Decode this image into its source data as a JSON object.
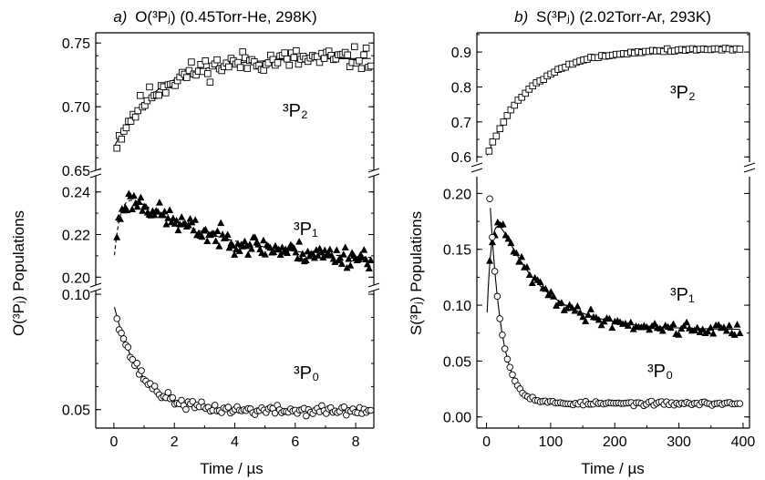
{
  "chart_data": [
    {
      "id": "a",
      "type": "scatter",
      "panel_letter": "a)",
      "title": "O(³Pⱼ) (0.45Torr-He, 298K)",
      "xlabel": "Time / µs",
      "ylabel": "O(³Pⱼ) Populations",
      "x_ticks": [
        "0",
        "2",
        "4",
        "6",
        "8"
      ],
      "xlim": [
        -0.6,
        8.6
      ],
      "subpanels": [
        {
          "series_name": "³P₂",
          "marker": "square",
          "ylim": [
            0.648,
            0.758
          ],
          "ticks": [
            0.65,
            0.7,
            0.75
          ],
          "tick_labels": [
            "0.65",
            "0.70",
            "0.75"
          ],
          "minor_step": 0.01,
          "fit": {
            "kind": "exp_rise",
            "y_inf": 0.738,
            "amp": 0.07,
            "tau": 1.4,
            "x0": 0
          },
          "data": {
            "kind": "fit_noise",
            "x_start": 0.1,
            "x_end": 8.5,
            "n": 110,
            "noise": 0.006,
            "seed": 11
          }
        },
        {
          "series_name": "³P₁",
          "marker": "triangle",
          "ylim": [
            0.195,
            0.248
          ],
          "ticks": [
            0.2,
            0.22,
            0.24
          ],
          "tick_labels": [
            "0.20",
            "0.22",
            "0.24"
          ],
          "minor_step": 0.01,
          "fit": {
            "kind": "rise_decay",
            "y_inf": 0.207,
            "amp": 0.038,
            "tau_decay": 3.0,
            "tau_rise": 0.22
          },
          "data": {
            "kind": "fit_noise",
            "x_start": 0.1,
            "x_end": 8.5,
            "n": 150,
            "noise": 0.0035,
            "seed": 23
          }
        },
        {
          "series_name": "³P₀",
          "marker": "circle",
          "ylim": [
            0.042,
            0.102
          ],
          "ticks": [
            0.05,
            0.1
          ],
          "tick_labels": [
            "0.05",
            "0.10"
          ],
          "minor_step": 0.01,
          "fit": {
            "kind": "exp_decay",
            "y_inf": 0.0495,
            "amp": 0.046,
            "tau": 0.85
          },
          "data": {
            "kind": "fit_noise",
            "x_start": 0.1,
            "x_end": 8.5,
            "n": 115,
            "noise": 0.0015,
            "seed": 37
          }
        }
      ]
    },
    {
      "id": "b",
      "type": "scatter",
      "panel_letter": "b)",
      "title": "S(³Pⱼ) (2.02Torr-Ar, 293K)",
      "xlabel": "Time / µs",
      "ylabel": "S(³Pⱼ) Populations",
      "x_ticks": [
        "0",
        "100",
        "200",
        "300",
        "400"
      ],
      "xlim": [
        -15,
        410
      ],
      "subpanels": [
        {
          "series_name": "³P₂",
          "marker": "square",
          "ylim": [
            0.585,
            0.955
          ],
          "ticks": [
            0.6,
            0.7,
            0.8,
            0.9
          ],
          "tick_labels": [
            "0.6",
            "0.7",
            "0.8",
            "0.9"
          ],
          "minor_step": 0.05,
          "fit": {
            "kind": "exp_rise",
            "y_inf": 0.91,
            "amp": 0.31,
            "tau": 68,
            "x0": 0
          },
          "data": {
            "kind": "fit_noise",
            "x_start": 4,
            "x_end": 395,
            "n": 70,
            "noise": 0.003,
            "seed": 5
          }
        },
        {
          "series_name": "³P₁",
          "marker": "triangle",
          "ylim": [
            -0.01,
            0.215
          ],
          "ticks": [
            0.0,
            0.05,
            0.1,
            0.15,
            0.2
          ],
          "tick_labels": [
            "0.00",
            "0.05",
            "0.10",
            "0.15",
            "0.20"
          ],
          "minor_step": 0.025,
          "fit": {
            "kind": "rise_decay",
            "y_inf": 0.078,
            "amp": 0.135,
            "tau_decay": 68,
            "tau_rise": 8
          },
          "data": {
            "kind": "fit_noise",
            "x_start": 5,
            "x_end": 395,
            "n": 95,
            "noise": 0.004,
            "seed": 41
          }
        },
        {
          "series_name": "³P₀",
          "marker": "circle",
          "ylim": [
            -0.01,
            0.215
          ],
          "ticks": [],
          "tick_labels": [],
          "minor_step": 0,
          "shares_axes_with_previous": true,
          "fit": {
            "kind": "exp_decay",
            "y_inf": 0.012,
            "amp": 0.185,
            "tau": 18,
            "x0": 5
          },
          "data": {
            "kind": "fit_noise",
            "x_start": 5,
            "x_end": 395,
            "n": 100,
            "noise": 0.0012,
            "seed": 53
          }
        }
      ]
    }
  ]
}
